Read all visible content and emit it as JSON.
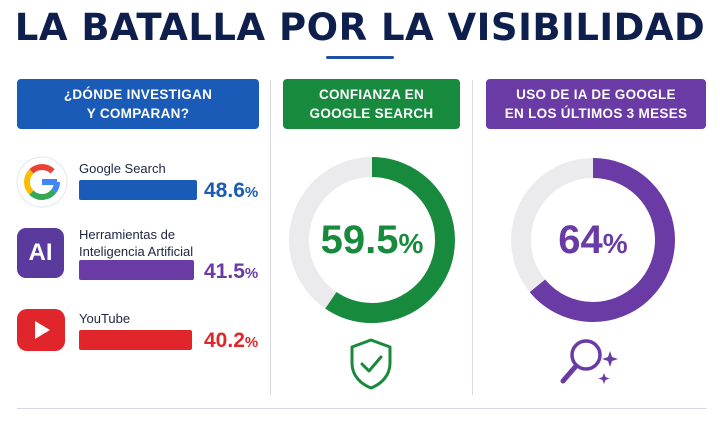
{
  "title": "LA BATALLA POR LA VISIBILIDAD",
  "columns": {
    "research": {
      "header_line1": "¿DÓNDE INVESTIGAN",
      "header_line2": "Y COMPARAN?",
      "items": [
        {
          "label": "Google Search",
          "value": "48.6",
          "unit": "%",
          "color": "#1a5bb8",
          "icon": "google-g-logo"
        },
        {
          "label_line1": "Herramientas de",
          "label_line2": "Inteligencia Artificial",
          "value": "41.5",
          "unit": "%",
          "color": "#6a3aa5",
          "icon": "ai-badge-icon",
          "icon_text": "AI"
        },
        {
          "label": "YouTube",
          "value": "40.2",
          "unit": "%",
          "color": "#e0262a",
          "icon": "youtube-play-icon"
        }
      ]
    },
    "trust": {
      "header_line1": "CONFIANZA EN",
      "header_line2": "GOOGLE SEARCH",
      "value": "59.5",
      "unit": "%",
      "fraction": 0.595,
      "color": "#178a3e",
      "icon": "shield-check-icon"
    },
    "ai_usage": {
      "header_line1": "USO DE IA DE GOOGLE",
      "header_line2": "EN LOS ÚLTIMOS 3 MESES",
      "value": "64",
      "unit": "%",
      "fraction": 0.64,
      "color": "#6a3aa5",
      "icon": "magnifier-sparkle-icon"
    }
  }
}
